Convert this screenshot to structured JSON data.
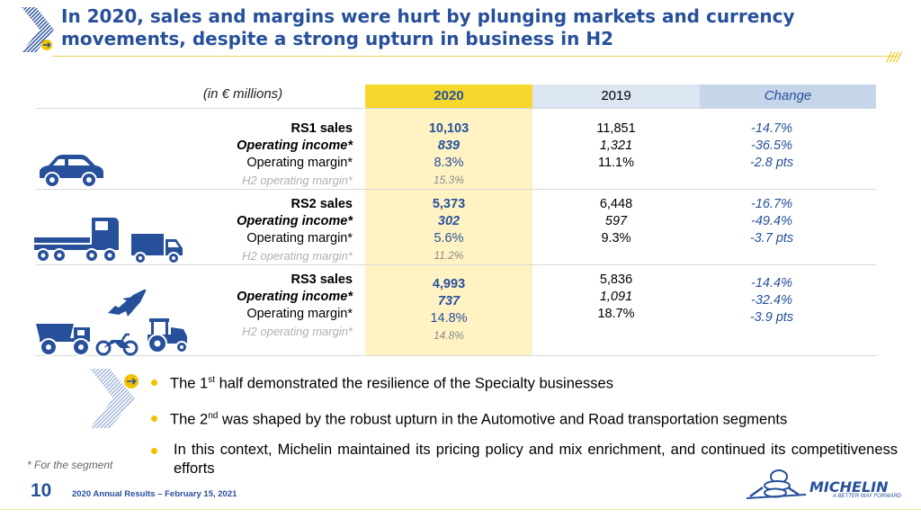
{
  "title": "In 2020, sales and margins were hurt by plunging markets and currency movements, despite a strong upturn in business in H2",
  "table": {
    "unit_label": "(in € millions)",
    "col_2020": "2020",
    "col_2019": "2019",
    "col_change": "Change",
    "segments": [
      {
        "sales_label": "RS1 sales",
        "oi_label": "Operating income*",
        "om_label": "Operating margin*",
        "h2_label": "H2 operating margin*",
        "y2020": {
          "sales": "10,103",
          "oi": "839",
          "om": "8.3%",
          "h2": "15.3%"
        },
        "y2019": {
          "sales": "11,851",
          "oi": "1,321",
          "om": "11.1%"
        },
        "change": {
          "sales": "-14.7%",
          "oi": "-36.5%",
          "om": "-2.8 pts"
        }
      },
      {
        "sales_label": "RS2 sales",
        "oi_label": "Operating income*",
        "om_label": "Operating margin*",
        "h2_label": "H2 operating margin*",
        "y2020": {
          "sales": "5,373",
          "oi": "302",
          "om": "5.6%",
          "h2": "11.2%"
        },
        "y2019": {
          "sales": "6,448",
          "oi": "597",
          "om": "9.3%"
        },
        "change": {
          "sales": "-16.7%",
          "oi": "-49.4%",
          "om": "-3.7 pts"
        }
      },
      {
        "sales_label": "RS3 sales",
        "oi_label": "Operating income*",
        "om_label": "Operating margin*",
        "h2_label": "H2 operating margin*",
        "y2020": {
          "sales": "4,993",
          "oi": "737",
          "om": "14.8%",
          "h2": "14.8%"
        },
        "y2019": {
          "sales": "5,836",
          "oi": "1,091",
          "om": "18.7%"
        },
        "change": {
          "sales": "-14.4%",
          "oi": "-32.4%",
          "om": "-3.9 pts"
        }
      }
    ]
  },
  "bullets": {
    "b1_pre": "The 1",
    "b1_sup": "st",
    "b1_post": " half demonstrated the resilience of the Specialty businesses",
    "b2_pre": "The 2",
    "b2_sup": "nd",
    "b2_post": " was shaped by the robust upturn in the Automotive and Road transportation segments",
    "b3": "In this context, Michelin maintained its pricing policy and mix enrichment, and continued its competitiveness efforts"
  },
  "footnote": "* For the segment",
  "page_number": "10",
  "footer": "2020 Annual Results – February 15, 2021",
  "logo": {
    "name": "MICHELIN",
    "tagline": "A BETTER WAY FORWARD"
  },
  "icons": [
    "chevron-arrow-icon",
    "car-icon",
    "truck-icon",
    "van-icon",
    "airplane-icon",
    "mining-truck-icon",
    "motorcycle-icon",
    "tractor-icon",
    "michelin-man-icon"
  ],
  "colors": {
    "brand_blue": "#27509B",
    "brand_yellow": "#F2C200",
    "col_2020_header": "#F5D72E",
    "col_2020_fill": "#FFF3C4",
    "col_2019_header": "#DCE6F2",
    "col_change_header": "#C5D5EA"
  }
}
